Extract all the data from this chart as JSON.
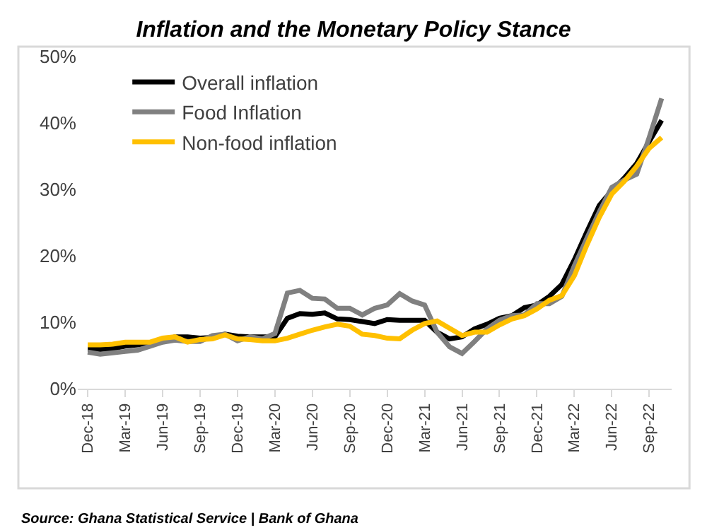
{
  "chart_data": {
    "type": "line",
    "title": "Inflation and the Monetary Policy Stance",
    "categories": [
      "Dec-18",
      null,
      null,
      "Mar-19",
      null,
      null,
      "Jun-19",
      null,
      null,
      "Sep-19",
      null,
      null,
      "Dec-19",
      null,
      null,
      "Mar-20",
      null,
      null,
      "Jun-20",
      null,
      null,
      "Sep-20",
      null,
      null,
      "Dec-20",
      null,
      null,
      "Mar-21",
      null,
      null,
      "Jun-21",
      null,
      null,
      "Sep-21",
      null,
      null,
      "Dec-21",
      null,
      null,
      "Mar-22",
      null,
      null,
      "Jun-22",
      null,
      null,
      "Sep-22",
      null
    ],
    "series": [
      {
        "name": "Overall inflation",
        "color": "#000000",
        "values": [
          5.9,
          5.9,
          6.0,
          6.4,
          6.6,
          6.6,
          7.3,
          7.8,
          7.8,
          7.6,
          7.7,
          8.2,
          7.9,
          7.8,
          7.8,
          7.8,
          10.6,
          11.3,
          11.2,
          11.4,
          10.5,
          10.4,
          10.1,
          9.8,
          10.4,
          10.3,
          10.3,
          10.3,
          8.5,
          7.5,
          7.8,
          9.0,
          9.7,
          10.6,
          11.0,
          12.2,
          12.6,
          13.9,
          15.7,
          19.4,
          23.6,
          27.6,
          29.8,
          31.7,
          33.9,
          37.2,
          40.4
        ]
      },
      {
        "name": "Food Inflation",
        "color": "#808080",
        "values": [
          5.5,
          5.2,
          5.4,
          5.6,
          5.8,
          6.4,
          7.0,
          7.3,
          7.1,
          7.1,
          8.0,
          8.2,
          7.2,
          7.8,
          7.5,
          8.3,
          14.4,
          14.8,
          13.6,
          13.5,
          12.1,
          12.1,
          11.1,
          12.1,
          12.6,
          14.3,
          13.2,
          12.6,
          8.5,
          6.3,
          5.3,
          7.1,
          9.0,
          10.3,
          11.0,
          11.1,
          12.8,
          12.8,
          13.9,
          18.5,
          22.6,
          26.6,
          30.3,
          31.4,
          32.3,
          37.8,
          43.7
        ]
      },
      {
        "name": "Non-food inflation",
        "color": "#ffc000",
        "values": [
          6.6,
          6.6,
          6.7,
          7.0,
          7.0,
          7.0,
          7.6,
          7.8,
          7.0,
          7.4,
          7.5,
          8.1,
          7.5,
          7.4,
          7.2,
          7.2,
          7.6,
          8.2,
          8.8,
          9.3,
          9.7,
          9.4,
          8.2,
          8.0,
          7.6,
          7.5,
          8.8,
          9.8,
          10.2,
          9.1,
          8.0,
          8.5,
          8.5,
          9.6,
          10.5,
          11.0,
          12.0,
          13.3,
          14.0,
          17.0,
          21.6,
          25.8,
          29.3,
          31.2,
          33.5,
          36.2,
          37.8
        ]
      }
    ],
    "ylim": [
      0,
      50
    ],
    "yticks": [
      {
        "value": 0,
        "label": "0%"
      },
      {
        "value": 10,
        "label": "10%"
      },
      {
        "value": 20,
        "label": "20%"
      },
      {
        "value": 30,
        "label": "30%"
      },
      {
        "value": 40,
        "label": "40%"
      },
      {
        "value": 50,
        "label": "50%"
      }
    ],
    "legend": "top left",
    "marker": "none",
    "line_style": "solid",
    "annotations": [
      "Source: Ghana Statistical Service | Bank of Ghana"
    ]
  }
}
